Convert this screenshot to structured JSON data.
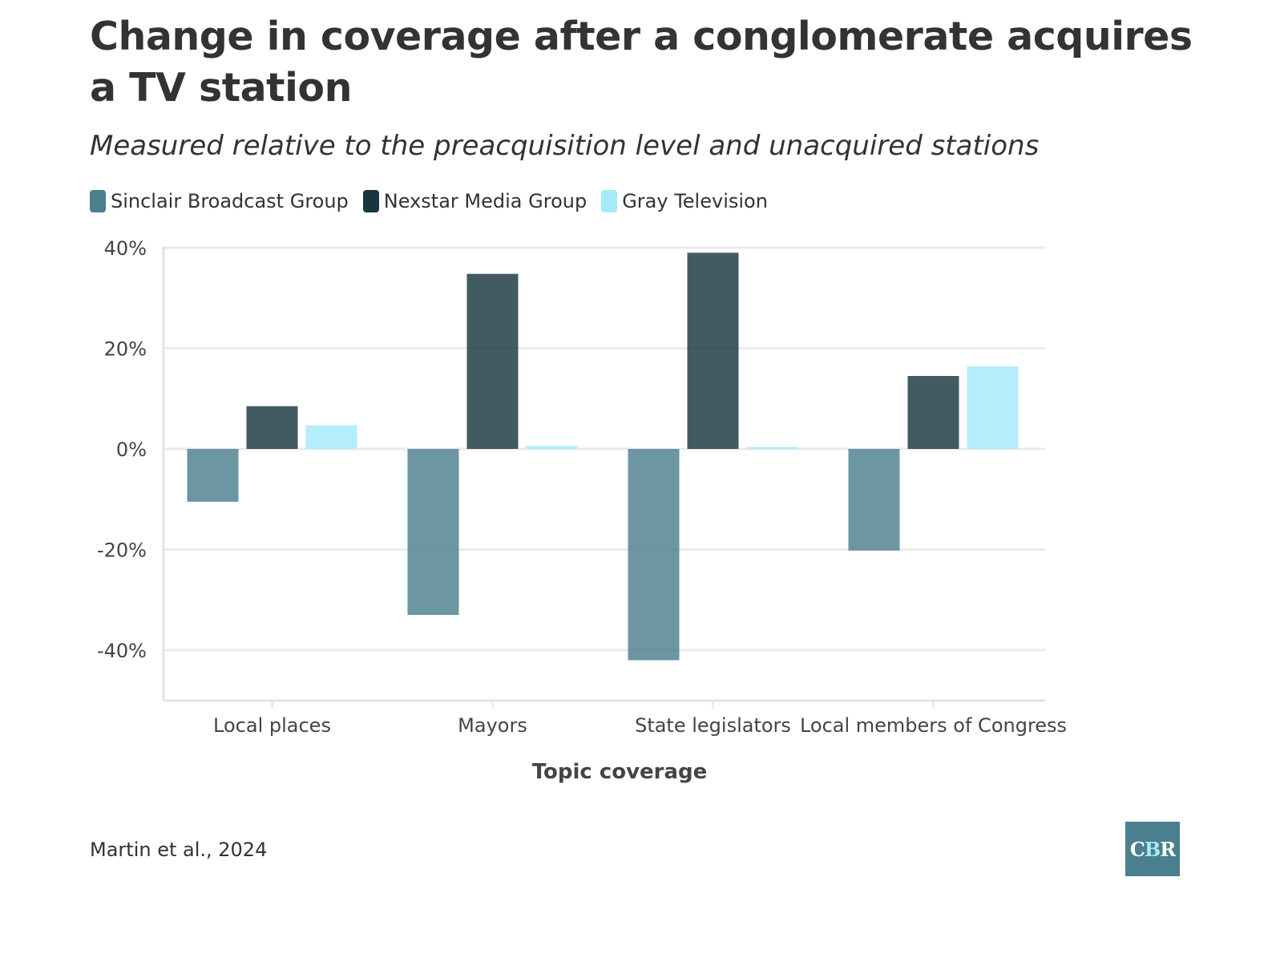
{
  "chart_data": {
    "type": "bar",
    "title": "Change in coverage after a conglomerate acquires a TV station",
    "subtitle": "Measured relative to the preacquisition level and unacquired stations",
    "xlabel": "Topic coverage",
    "ylabel": "",
    "categories": [
      "Local places",
      "Mayors",
      "State legislators",
      "Local members of Congress"
    ],
    "series": [
      {
        "name": "Sinclair Broadcast Group",
        "color": "#4a7f8d",
        "values": [
          -10.5,
          -33,
          -42,
          -20.2
        ]
      },
      {
        "name": "Nexstar Media Group",
        "color": "#183640",
        "values": [
          8.5,
          34.8,
          39,
          14.5
        ]
      },
      {
        "name": "Gray Television",
        "color": "#a6e9fb",
        "values": [
          4.7,
          0.6,
          0.4,
          16.4
        ]
      }
    ],
    "ylim": [
      -50,
      40
    ],
    "yticks": [
      40,
      20,
      0,
      -20,
      -40
    ],
    "ytick_labels": [
      "40%",
      "20%",
      "0%",
      "-20%",
      "-40%"
    ],
    "grid": true,
    "legend": "top-left",
    "source": "Martin et al., 2024"
  },
  "logo": {
    "c": "C",
    "b": "B",
    "r": "R"
  }
}
